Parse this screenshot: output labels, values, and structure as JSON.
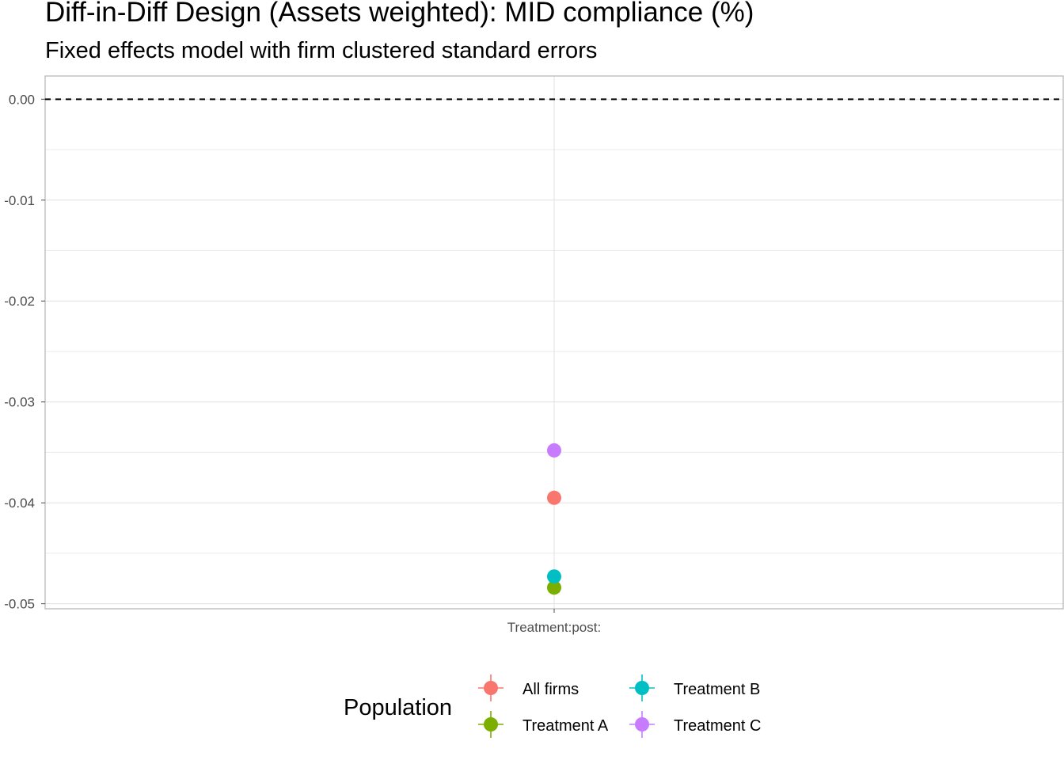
{
  "chart_data": {
    "type": "scatter",
    "title": "Diff-in-Diff Design (Assets weighted): MID compliance (%)",
    "subtitle": "Fixed effects model with firm clustered standard errors",
    "xlabel": "",
    "ylabel": "",
    "categories": [
      "Treatment:post:"
    ],
    "ylim": [
      -0.0505,
      0.0023
    ],
    "y_ticks": [
      0.0,
      -0.01,
      -0.02,
      -0.03,
      -0.04,
      -0.05
    ],
    "y_tick_labels": [
      "0.00",
      "-0.01",
      "-0.02",
      "-0.03",
      "-0.04",
      "-0.05"
    ],
    "reference_line": {
      "y": 0,
      "style": "dashed"
    },
    "grid": true,
    "legend": {
      "title": "Population",
      "position": "bottom"
    },
    "series": [
      {
        "name": "All firms",
        "color": "#F8766D",
        "values": [
          -0.0395
        ]
      },
      {
        "name": "Treatment A",
        "color": "#7CAE00",
        "values": [
          -0.0484
        ]
      },
      {
        "name": "Treatment B",
        "color": "#00BFC4",
        "values": [
          -0.0473
        ]
      },
      {
        "name": "Treatment C",
        "color": "#C77CFF",
        "values": [
          -0.0348
        ]
      }
    ]
  }
}
